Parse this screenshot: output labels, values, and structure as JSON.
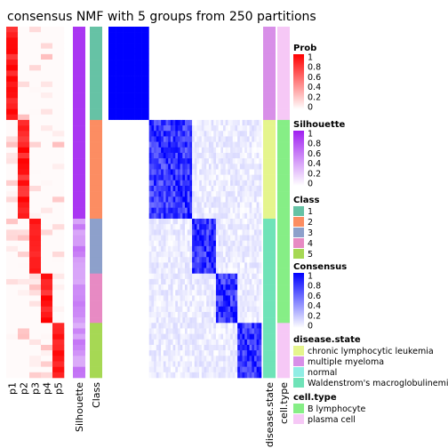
{
  "chart_data": {
    "type": "heatmap",
    "title": "consensus NMF with 5 groups from 250 partitions",
    "columns": [
      "p1",
      "p2",
      "p3",
      "p4",
      "p5",
      "Silhouette",
      "Class",
      "disease.state",
      "cell.type"
    ],
    "groups": [
      {
        "class": 1,
        "size": 17,
        "disease_state": "multiple myeloma",
        "cell_type": "plasma cell"
      },
      {
        "class": 2,
        "size": 18,
        "disease_state": "chronic lymphocytic leukemia",
        "cell_type": "B lymphocyte"
      },
      {
        "class": 3,
        "size": 10,
        "disease_state": "Waldenstrom's macroglobulinemia",
        "cell_type": "B lymphocyte"
      },
      {
        "class": 4,
        "size": 9,
        "disease_state": "Waldenstrom's macroglobulinemia",
        "cell_type": "B lymphocyte"
      },
      {
        "class": 5,
        "size": 10,
        "disease_state": "Waldenstrom's macroglobulinemia",
        "cell_type": "plasma cell"
      }
    ],
    "class_colors": {
      "1": "#66C2A5",
      "2": "#FC8D62",
      "3": "#8DA0CB",
      "4": "#E78AC3",
      "5": "#A6D854"
    },
    "prob_scale": {
      "range": [
        0,
        1
      ],
      "low": "#FFFFFF",
      "high": "#FF0000"
    },
    "silhouette_scale": {
      "range": [
        0,
        1
      ],
      "low": "#FFFFFF",
      "high": "#A020F0"
    },
    "consensus_scale": {
      "range": [
        0,
        1
      ],
      "low": "#FFFFFF",
      "high": "#0000FF"
    }
  },
  "legends": {
    "prob": {
      "title": "Prob",
      "ticks": [
        "1",
        "0.8",
        "0.6",
        "0.4",
        "0.2",
        "0"
      ],
      "colors": [
        "#FF0000",
        "#FFFFFF"
      ]
    },
    "silhouette": {
      "title": "Silhouette",
      "ticks": [
        "1",
        "0.8",
        "0.6",
        "0.4",
        "0.2",
        "0"
      ],
      "colors": [
        "#A020F0",
        "#FFFFFF"
      ]
    },
    "class": {
      "title": "Class",
      "items": [
        {
          "label": "1",
          "color": "#66C2A5"
        },
        {
          "label": "2",
          "color": "#FC8D62"
        },
        {
          "label": "3",
          "color": "#8DA0CB"
        },
        {
          "label": "4",
          "color": "#E78AC3"
        },
        {
          "label": "5",
          "color": "#A6D854"
        }
      ]
    },
    "consensus": {
      "title": "Consensus",
      "ticks": [
        "1",
        "0.8",
        "0.6",
        "0.4",
        "0.2",
        "0"
      ],
      "colors": [
        "#0000FF",
        "#FFFFFF"
      ]
    },
    "disease_state": {
      "title": "disease.state",
      "items": [
        {
          "label": "chronic lymphocytic leukemia",
          "color": "#E5F58D"
        },
        {
          "label": "multiple myeloma",
          "color": "#D88FE8"
        },
        {
          "label": "normal",
          "color": "#8FEDE4"
        },
        {
          "label": "Waldenstrom's macroglobulinemia",
          "color": "#6FE3B8"
        }
      ]
    },
    "cell_type": {
      "title": "cell.type",
      "items": [
        {
          "label": "B lymphocyte",
          "color": "#86EE86"
        },
        {
          "label": "plasma cell",
          "color": "#F6C8F6"
        }
      ]
    }
  }
}
